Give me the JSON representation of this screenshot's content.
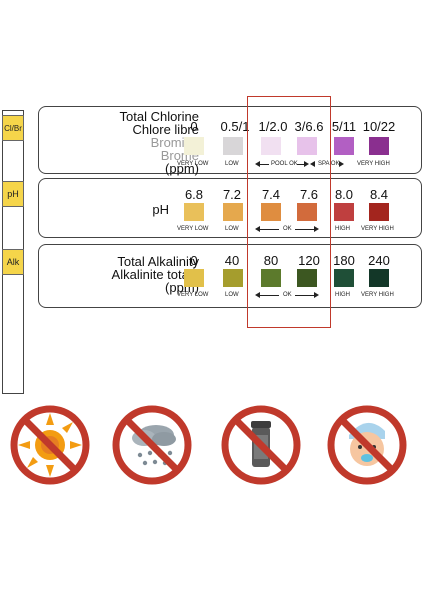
{
  "strip": {
    "pads": [
      "Cl/Br",
      "pH",
      "Alk"
    ]
  },
  "chlorine": {
    "title1": "Total Chlorine",
    "title2": "Chlore libre",
    "title3": "Bromine",
    "title4": "Brome",
    "unit": "(ppm)",
    "values": [
      "0",
      "0.5/1",
      "1/2.0",
      "3/6.6",
      "5/11",
      "10/22"
    ],
    "colors": [
      "#f3f1d7",
      "#d8d6d8",
      "#f1e0f1",
      "#e7c2ea",
      "#b25fc3",
      "#8a2f8f"
    ],
    "cap_very_low": "VERY LOW",
    "cap_low": "LOW",
    "cap_pool_ok": "POOL OK",
    "cap_spa_ok": "SPA OK",
    "cap_very_high": "VERY HIGH"
  },
  "ph": {
    "title": "pH",
    "values": [
      "6.8",
      "7.2",
      "7.4",
      "7.6",
      "8.0",
      "8.4"
    ],
    "colors": [
      "#e9c05a",
      "#e5a84d",
      "#df8d40",
      "#d26b3c",
      "#bf3f3f",
      "#a3251e"
    ],
    "cap_very_low": "VERY LOW",
    "cap_low": "LOW",
    "cap_ok": "OK",
    "cap_high": "HIGH",
    "cap_very_high": "VERY HIGH"
  },
  "alk": {
    "title1": "Total Alkalinity",
    "title2": "Alkalinite totale",
    "unit": "(ppm)",
    "values": [
      "0",
      "40",
      "80",
      "120",
      "180",
      "240"
    ],
    "colors": [
      "#e1c04a",
      "#a59d2d",
      "#5c7a2c",
      "#3c5721",
      "#1f4f37",
      "#133728"
    ],
    "cap_very_low": "VERY LOW",
    "cap_low": "LOW",
    "cap_ok": "OK",
    "cap_high": "HIGH",
    "cap_very_high": "VERY HIGH"
  },
  "icons": [
    "no-sun-icon",
    "no-rain-icon",
    "no-container-icon",
    "no-child-icon"
  ],
  "accent": "#c0392b"
}
